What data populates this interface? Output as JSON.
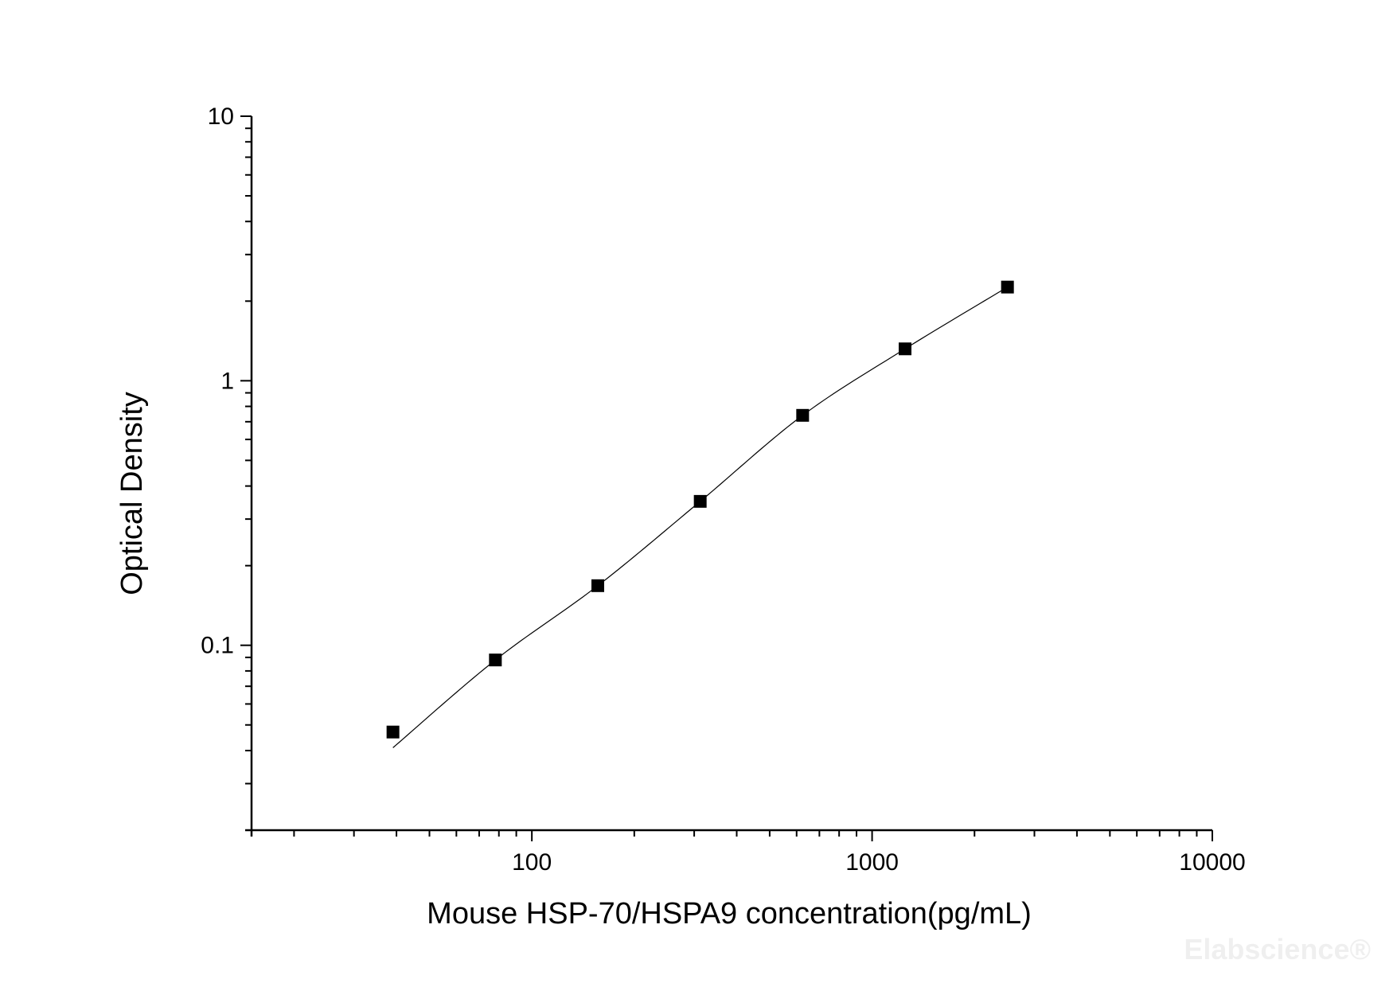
{
  "chart_data": {
    "type": "scatter",
    "x_scale": "log",
    "y_scale": "log",
    "xlabel": "Mouse HSP-70/HSPA9 concentration(pg/mL)",
    "ylabel": "Optical Density",
    "xlim": [
      15,
      10000
    ],
    "ylim": [
      0.02,
      10
    ],
    "x_ticks": [
      {
        "value": 100,
        "label": "100"
      },
      {
        "value": 1000,
        "label": "1000"
      },
      {
        "value": 10000,
        "label": "10000"
      }
    ],
    "y_ticks": [
      {
        "value": 0.1,
        "label": "0.1"
      },
      {
        "value": 1,
        "label": "1"
      },
      {
        "value": 10,
        "label": "10"
      }
    ],
    "grid": false,
    "series": [
      {
        "x": [
          39.06,
          78.13,
          156.25,
          312.5,
          625,
          1250,
          2500
        ],
        "y": [
          0.047,
          0.088,
          0.168,
          0.35,
          0.74,
          1.32,
          2.26
        ],
        "marker": "square",
        "fit_line": true,
        "color": "#000000"
      }
    ]
  },
  "watermark": {
    "text": "Elabscience®"
  }
}
